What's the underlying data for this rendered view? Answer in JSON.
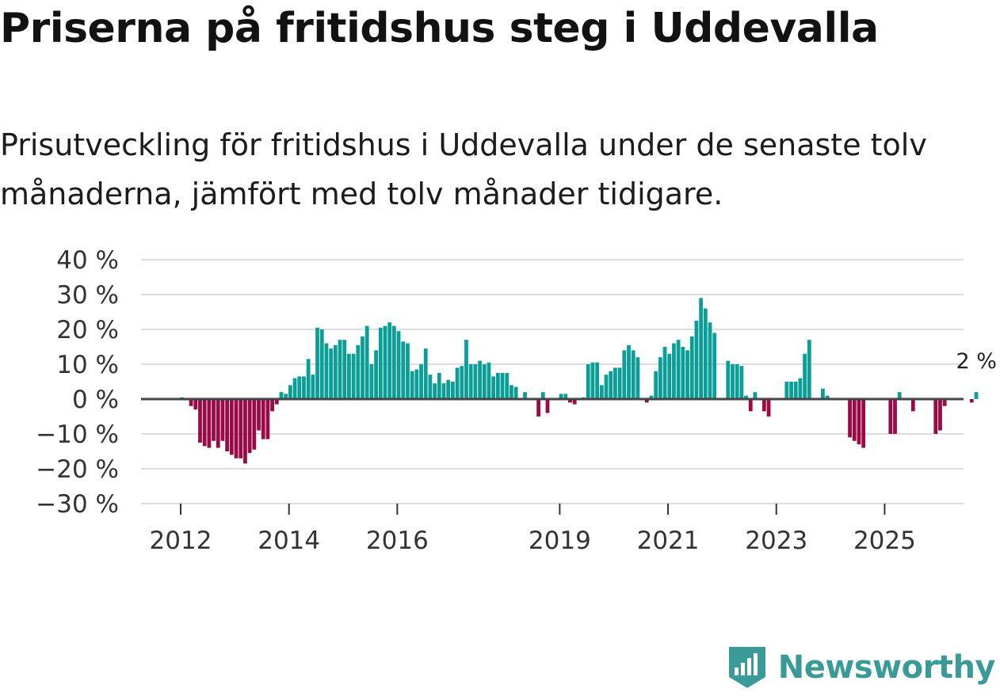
{
  "title": "Priserna på fritidshus steg i Uddevalla",
  "subtitle": "Prisutveckling för fritidshus i Uddevalla under de senaste tolv månaderna, jämfört med tolv månader tidigare.",
  "brand": "Newsworthy",
  "colors": {
    "positive": "#0a9e96",
    "negative": "#9a0a46",
    "zero_line": "#444444",
    "grid": "#dddddd",
    "brand": "#3a9a97"
  },
  "chart_data": {
    "type": "bar",
    "title": "Priserna på fritidshus steg i Uddevalla",
    "xlabel": "",
    "ylabel": "",
    "ylim": [
      -30,
      40
    ],
    "ytick_values": [
      -30,
      -20,
      -10,
      0,
      10,
      20,
      30,
      40
    ],
    "ytick_labels": [
      "−30 %",
      "−20 %",
      "−10 %",
      "0 %",
      "10 %",
      "20 %",
      "30 %",
      "40 %"
    ],
    "x_start": "2012-01",
    "xtick_years": [
      2012,
      2014,
      2016,
      2019,
      2021,
      2023,
      2025
    ],
    "xtick_labels": [
      "2012",
      "2014",
      "2016",
      "2019",
      "2021",
      "2023",
      "2025"
    ],
    "last_value_label": "2 %",
    "values": [
      0.5,
      0,
      -2,
      -3,
      -12.5,
      -13.5,
      -14,
      -12,
      -14,
      -12,
      -15,
      -16,
      -17,
      -17,
      -18.5,
      -15.5,
      -14.5,
      -9,
      -11.5,
      -11.5,
      -3.5,
      -1.5,
      2,
      1.5,
      4,
      6,
      6.5,
      6.5,
      11.5,
      7,
      20.5,
      20,
      16,
      14.5,
      15.5,
      17,
      17,
      13,
      13,
      15.5,
      18,
      21,
      10,
      14,
      20.5,
      21,
      22,
      21,
      19.5,
      16.5,
      16,
      8,
      8.5,
      10,
      14.5,
      7,
      4.5,
      7.5,
      4.5,
      5.5,
      5,
      9,
      9.5,
      17,
      10,
      10,
      11,
      10,
      10.5,
      6.5,
      7.5,
      7.5,
      7.5,
      4,
      3.5,
      0,
      2,
      0,
      0,
      -5,
      2,
      -4,
      0,
      0,
      1.5,
      1.5,
      -1,
      -1.5,
      0,
      0.5,
      10,
      10.5,
      10.5,
      4,
      7,
      8,
      9,
      9,
      14,
      15.5,
      14,
      12,
      0,
      -1,
      1,
      8,
      12,
      15,
      13,
      16,
      17,
      15,
      14,
      18,
      22.5,
      29,
      26,
      22,
      19,
      0,
      0,
      11,
      10,
      10,
      9.5,
      1,
      -3.5,
      2,
      0,
      -3.5,
      -5,
      0,
      0,
      0,
      5,
      5,
      5,
      6,
      13,
      17,
      0,
      0,
      3,
      1,
      0,
      0,
      0,
      0,
      -11,
      -12,
      -13,
      -14,
      0,
      0,
      0,
      0,
      0,
      -10,
      -10,
      2,
      0,
      0,
      -3.5,
      0,
      0,
      0,
      0,
      -10,
      -9,
      -2,
      0,
      0,
      0,
      0,
      0,
      -1,
      2
    ]
  }
}
